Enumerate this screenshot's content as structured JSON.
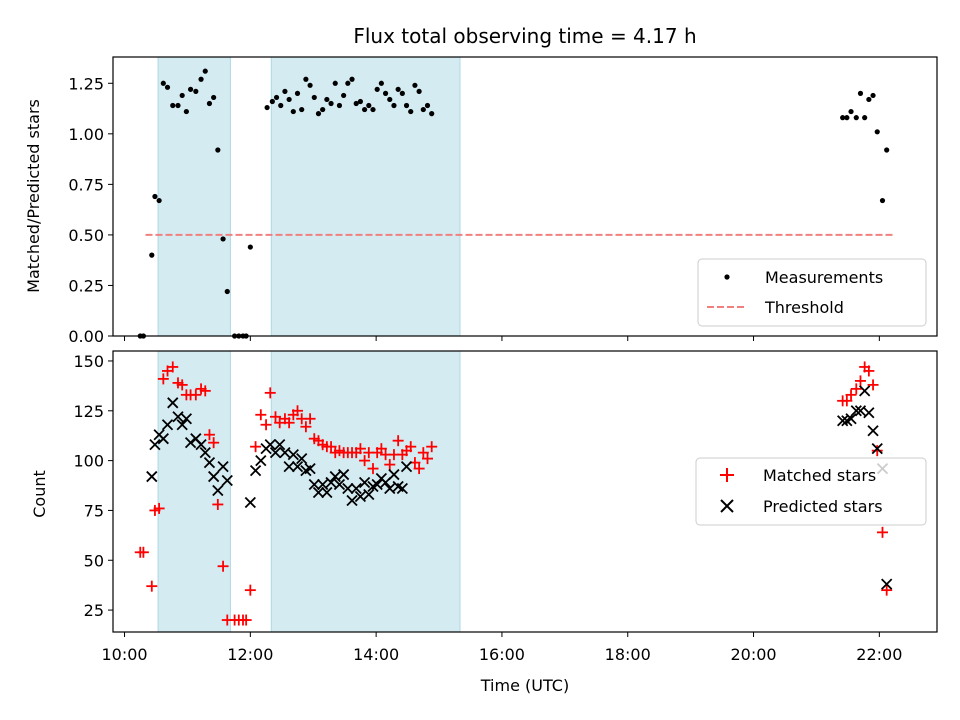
{
  "chart_data": [
    {
      "type": "scatter",
      "title": "Flux total observing time = 4.17 h",
      "ylabel": "Matched/Predicted stars",
      "xlabel": "",
      "x_unit": "UTC time (HH:MM)",
      "xlim": [
        "09:49",
        "22:55"
      ],
      "ylim": [
        0,
        1.38
      ],
      "x_ticks": [
        "10:00",
        "12:00",
        "14:00",
        "16:00",
        "18:00",
        "20:00",
        "22:00"
      ],
      "y_ticks": [
        "0.00",
        "0.25",
        "0.50",
        "0.75",
        "1.00",
        "1.25"
      ],
      "shaded_intervals": [
        [
          "10:32",
          "11:41"
        ],
        [
          "12:20",
          "15:20"
        ]
      ],
      "shade_color": "#add8e6",
      "legend_position": "lower right",
      "series": [
        {
          "name": "Measurements",
          "kind": "scatter",
          "marker": "dot",
          "color": "#000000",
          "points": [
            [
              "10:15",
              0
            ],
            [
              "10:18",
              0
            ],
            [
              "10:26",
              0.4
            ],
            [
              "10:29",
              0.69
            ],
            [
              "10:33",
              0.67
            ],
            [
              "10:37",
              1.25
            ],
            [
              "10:41",
              1.23
            ],
            [
              "10:46",
              1.14
            ],
            [
              "10:51",
              1.14
            ],
            [
              "10:55",
              1.19
            ],
            [
              "10:59",
              1.11
            ],
            [
              "11:03",
              1.22
            ],
            [
              "11:08",
              1.21
            ],
            [
              "11:13",
              1.27
            ],
            [
              "11:17",
              1.31
            ],
            [
              "11:21",
              1.15
            ],
            [
              "11:25",
              1.18
            ],
            [
              "11:29",
              0.92
            ],
            [
              "11:34",
              0.48
            ],
            [
              "11:38",
              0.22
            ],
            [
              "11:45",
              0
            ],
            [
              "11:49",
              0
            ],
            [
              "11:53",
              0
            ],
            [
              "11:56",
              0
            ],
            [
              "12:00",
              0.44
            ],
            [
              "12:16",
              1.13
            ],
            [
              "12:21",
              1.16
            ],
            [
              "12:25",
              1.18
            ],
            [
              "12:29",
              1.14
            ],
            [
              "12:33",
              1.21
            ],
            [
              "12:37",
              1.17
            ],
            [
              "12:41",
              1.11
            ],
            [
              "12:45",
              1.2
            ],
            [
              "12:49",
              1.12
            ],
            [
              "12:53",
              1.27
            ],
            [
              "12:57",
              1.24
            ],
            [
              "13:01",
              1.18
            ],
            [
              "13:05",
              1.1
            ],
            [
              "13:09",
              1.12
            ],
            [
              "13:13",
              1.17
            ],
            [
              "13:17",
              1.15
            ],
            [
              "13:21",
              1.25
            ],
            [
              "13:25",
              1.14
            ],
            [
              "13:29",
              1.19
            ],
            [
              "13:33",
              1.25
            ],
            [
              "13:37",
              1.27
            ],
            [
              "13:41",
              1.15
            ],
            [
              "13:45",
              1.16
            ],
            [
              "13:49",
              1.12
            ],
            [
              "13:53",
              1.14
            ],
            [
              "13:57",
              1.12
            ],
            [
              "14:01",
              1.22
            ],
            [
              "14:05",
              1.25
            ],
            [
              "14:09",
              1.2
            ],
            [
              "14:13",
              1.17
            ],
            [
              "14:17",
              1.14
            ],
            [
              "14:21",
              1.22
            ],
            [
              "14:25",
              1.2
            ],
            [
              "14:29",
              1.14
            ],
            [
              "14:33",
              1.11
            ],
            [
              "14:37",
              1.24
            ],
            [
              "14:41",
              1.21
            ],
            [
              "14:45",
              1.12
            ],
            [
              "14:49",
              1.14
            ],
            [
              "14:53",
              1.1
            ],
            [
              "21:25",
              1.08
            ],
            [
              "21:29",
              1.08
            ],
            [
              "21:33",
              1.11
            ],
            [
              "21:38",
              1.08
            ],
            [
              "21:42",
              1.2
            ],
            [
              "21:46",
              1.08
            ],
            [
              "21:50",
              1.17
            ],
            [
              "21:54",
              1.19
            ],
            [
              "21:58",
              1.01
            ],
            [
              "22:03",
              0.67
            ],
            [
              "22:07",
              0.92
            ]
          ]
        },
        {
          "name": "Threshold",
          "kind": "line",
          "style": "dashed",
          "color": "#f08080",
          "points": [
            [
              "10:20",
              0.5
            ],
            [
              "22:15",
              0.5
            ]
          ]
        }
      ]
    },
    {
      "type": "scatter",
      "title": "",
      "ylabel": "Count",
      "xlabel": "Time (UTC)",
      "x_unit": "UTC time (HH:MM)",
      "xlim": [
        "09:49",
        "22:55"
      ],
      "ylim": [
        14,
        155
      ],
      "x_ticks": [
        "10:00",
        "12:00",
        "14:00",
        "16:00",
        "18:00",
        "20:00",
        "22:00"
      ],
      "y_ticks": [
        "25",
        "50",
        "75",
        "100",
        "125",
        "150"
      ],
      "shaded_intervals": [
        [
          "10:32",
          "11:41"
        ],
        [
          "12:20",
          "15:20"
        ]
      ],
      "shade_color": "#add8e6",
      "legend_position": "center right",
      "series": [
        {
          "name": "Matched stars",
          "kind": "scatter",
          "marker": "plus",
          "color": "#ff0000",
          "points": [
            [
              "10:15",
              54
            ],
            [
              "10:18",
              54
            ],
            [
              "10:26",
              37
            ],
            [
              "10:29",
              75
            ],
            [
              "10:33",
              76
            ],
            [
              "10:37",
              141
            ],
            [
              "10:41",
              145
            ],
            [
              "10:46",
              147
            ],
            [
              "10:51",
              139
            ],
            [
              "10:55",
              138
            ],
            [
              "10:59",
              133
            ],
            [
              "11:03",
              133
            ],
            [
              "11:08",
              133
            ],
            [
              "11:13",
              136
            ],
            [
              "11:17",
              135
            ],
            [
              "11:21",
              113
            ],
            [
              "11:25",
              109
            ],
            [
              "11:29",
              78
            ],
            [
              "11:34",
              47
            ],
            [
              "11:38",
              20
            ],
            [
              "11:45",
              20
            ],
            [
              "11:49",
              20
            ],
            [
              "11:53",
              20
            ],
            [
              "11:56",
              20
            ],
            [
              "12:00",
              35
            ],
            [
              "12:05",
              107
            ],
            [
              "12:10",
              123
            ],
            [
              "12:15",
              118
            ],
            [
              "12:19",
              134
            ],
            [
              "12:24",
              122
            ],
            [
              "12:28",
              119
            ],
            [
              "12:33",
              121
            ],
            [
              "12:37",
              119
            ],
            [
              "12:41",
              123
            ],
            [
              "12:45",
              125
            ],
            [
              "12:49",
              121
            ],
            [
              "12:53",
              117
            ],
            [
              "12:57",
              121
            ],
            [
              "13:01",
              111
            ],
            [
              "13:05",
              110
            ],
            [
              "13:09",
              108
            ],
            [
              "13:13",
              107
            ],
            [
              "13:17",
              107
            ],
            [
              "13:21",
              104
            ],
            [
              "13:25",
              105
            ],
            [
              "13:29",
              104
            ],
            [
              "13:33",
              104
            ],
            [
              "13:37",
              104
            ],
            [
              "13:41",
              104
            ],
            [
              "13:45",
              106
            ],
            [
              "13:49",
              100
            ],
            [
              "13:53",
              104
            ],
            [
              "13:57",
              96
            ],
            [
              "14:01",
              104
            ],
            [
              "14:05",
              106
            ],
            [
              "14:09",
              103
            ],
            [
              "14:13",
              98
            ],
            [
              "14:17",
              103
            ],
            [
              "14:21",
              110
            ],
            [
              "14:25",
              103
            ],
            [
              "14:29",
              105
            ],
            [
              "14:33",
              107
            ],
            [
              "14:37",
              99
            ],
            [
              "14:41",
              96
            ],
            [
              "14:45",
              104
            ],
            [
              "14:49",
              101
            ],
            [
              "14:53",
              107
            ],
            [
              "21:25",
              130
            ],
            [
              "21:29",
              130
            ],
            [
              "21:33",
              133
            ],
            [
              "21:38",
              136
            ],
            [
              "21:42",
              140
            ],
            [
              "21:46",
              147
            ],
            [
              "21:50",
              145
            ],
            [
              "21:54",
              138
            ],
            [
              "21:58",
              105
            ],
            [
              "22:03",
              64
            ],
            [
              "22:07",
              35
            ]
          ]
        },
        {
          "name": "Predicted stars",
          "kind": "scatter",
          "marker": "x",
          "color": "#000000",
          "points": [
            [
              "10:26",
              92
            ],
            [
              "10:29",
              108
            ],
            [
              "10:33",
              113
            ],
            [
              "10:37",
              111
            ],
            [
              "10:41",
              118
            ],
            [
              "10:46",
              129
            ],
            [
              "10:51",
              122
            ],
            [
              "10:55",
              118
            ],
            [
              "10:59",
              121
            ],
            [
              "11:03",
              109
            ],
            [
              "11:08",
              111
            ],
            [
              "11:13",
              108
            ],
            [
              "11:17",
              104
            ],
            [
              "11:21",
              99
            ],
            [
              "11:25",
              92
            ],
            [
              "11:29",
              85
            ],
            [
              "11:34",
              97
            ],
            [
              "11:38",
              90
            ],
            [
              "12:00",
              79
            ],
            [
              "12:05",
              95
            ],
            [
              "12:10",
              100
            ],
            [
              "12:15",
              106
            ],
            [
              "12:19",
              108
            ],
            [
              "12:24",
              104
            ],
            [
              "12:28",
              108
            ],
            [
              "12:33",
              104
            ],
            [
              "12:37",
              97
            ],
            [
              "12:41",
              103
            ],
            [
              "12:45",
              97
            ],
            [
              "12:49",
              101
            ],
            [
              "12:53",
              95
            ],
            [
              "12:57",
              96
            ],
            [
              "13:01",
              88
            ],
            [
              "13:05",
              84
            ],
            [
              "13:09",
              88
            ],
            [
              "13:13",
              84
            ],
            [
              "13:17",
              89
            ],
            [
              "13:21",
              92
            ],
            [
              "13:25",
              88
            ],
            [
              "13:29",
              93
            ],
            [
              "13:33",
              86
            ],
            [
              "13:37",
              80
            ],
            [
              "13:41",
              86
            ],
            [
              "13:45",
              82
            ],
            [
              "13:49",
              89
            ],
            [
              "13:53",
              83
            ],
            [
              "13:57",
              87
            ],
            [
              "14:01",
              88
            ],
            [
              "14:05",
              91
            ],
            [
              "14:09",
              89
            ],
            [
              "14:13",
              86
            ],
            [
              "14:17",
              93
            ],
            [
              "14:21",
              87
            ],
            [
              "14:25",
              86
            ],
            [
              "14:29",
              97
            ],
            [
              "21:25",
              120
            ],
            [
              "21:29",
              120
            ],
            [
              "21:33",
              121
            ],
            [
              "21:38",
              125
            ],
            [
              "21:42",
              125
            ],
            [
              "21:46",
              135
            ],
            [
              "21:50",
              124
            ],
            [
              "21:54",
              115
            ],
            [
              "21:58",
              106
            ],
            [
              "22:03",
              96
            ],
            [
              "22:07",
              38
            ]
          ]
        }
      ]
    }
  ]
}
